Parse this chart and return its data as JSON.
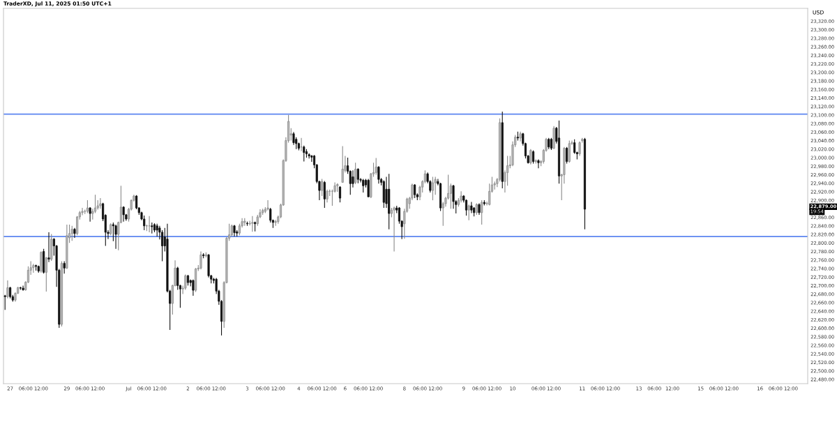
{
  "chart_data": {
    "type": "candlestick",
    "title": "TraderXD, Jul 11, 2025 01:50 UTC+1",
    "ylabel": "USD",
    "categories": [
      null,
      null,
      "27",
      null,
      null,
      null,
      null,
      null,
      "06:00",
      null,
      null,
      null,
      null,
      null,
      "12:00",
      null,
      null,
      null,
      null,
      null,
      null,
      null,
      null,
      null,
      "29",
      null,
      null,
      null,
      null,
      null,
      "06:00",
      null,
      null,
      null,
      null,
      null,
      "12:00",
      null,
      null,
      null,
      null,
      null,
      null,
      null,
      null,
      null,
      null,
      null,
      "Jul",
      null,
      null,
      null,
      null,
      null,
      "06:00",
      null,
      null,
      null,
      null,
      null,
      "12:00",
      null,
      null,
      null,
      null,
      null,
      null,
      null,
      null,
      null,
      null,
      "2",
      null,
      null,
      null,
      null,
      null,
      "06:00",
      null,
      null,
      null,
      null,
      null,
      "12:00",
      null,
      null,
      null,
      null,
      null,
      null,
      null,
      null,
      null,
      null,
      "3",
      null,
      null,
      null,
      null,
      null,
      "06:00",
      null,
      null,
      null,
      null,
      null,
      "12:00",
      null,
      null,
      null,
      null,
      null,
      null,
      null,
      "4",
      null,
      null,
      null,
      null,
      null,
      "06:00",
      null,
      null,
      null,
      null,
      null,
      "12:00",
      null,
      null,
      null,
      null,
      null,
      "6",
      null,
      null,
      null,
      null,
      null,
      "06:00",
      null,
      null,
      null,
      null,
      null,
      "12:00",
      null,
      null,
      null,
      null,
      null,
      null,
      null,
      null,
      null,
      null,
      "8",
      null,
      null,
      null,
      null,
      null,
      "06:00",
      null,
      null,
      null,
      null,
      null,
      "12:00",
      null,
      null,
      null,
      null,
      null,
      null,
      null,
      null,
      null,
      null,
      "9",
      null,
      null,
      null,
      null,
      null,
      "06:00",
      null,
      null,
      null,
      null,
      null,
      "12:00",
      null,
      null,
      null,
      null,
      null,
      null,
      "10",
      null,
      null,
      null,
      null,
      null,
      null,
      null,
      null,
      null,
      "06:00",
      null,
      null,
      null,
      null,
      null,
      "12:00",
      null,
      null,
      null,
      null,
      null,
      null,
      null,
      null,
      null,
      null,
      "11",
      null,
      null,
      null,
      null,
      null,
      "06:00",
      null,
      null,
      null,
      null,
      null,
      "12:00",
      null,
      null,
      null,
      null,
      null,
      null,
      null,
      null,
      null,
      "13",
      null,
      null,
      null,
      null,
      null,
      "06:00",
      null,
      null,
      null,
      null,
      null,
      null,
      "12:00",
      null,
      null,
      null,
      null,
      null,
      null,
      null,
      null,
      null,
      null,
      "15",
      null,
      null,
      null,
      null,
      null,
      "06:00",
      null,
      null,
      null,
      null,
      null,
      "12:00",
      null,
      null,
      null,
      null,
      null,
      null,
      null,
      null,
      null,
      null,
      "16",
      null,
      null,
      null,
      null,
      null,
      "06:00",
      null,
      null,
      null,
      null,
      null,
      "12:00",
      null,
      null,
      null,
      null,
      null,
      null
    ],
    "ohlc": [
      [
        22676,
        22678,
        22643,
        22674
      ],
      [
        22674,
        22712,
        22670,
        22695
      ],
      [
        22695,
        22697,
        22670,
        22674
      ],
      [
        22674,
        22678,
        22662,
        22666
      ],
      [
        22666,
        22684,
        22662,
        22682
      ],
      [
        22682,
        22697,
        22680,
        22695
      ],
      [
        22695,
        22697,
        22690,
        22694
      ],
      [
        22694,
        22700,
        22688,
        22690
      ],
      [
        22690,
        22710,
        22688,
        22708
      ],
      [
        22708,
        22745,
        22706,
        22736
      ],
      [
        22736,
        22757,
        22725,
        22742
      ],
      [
        22742,
        22751,
        22730,
        22747
      ],
      [
        22747,
        22749,
        22735,
        22745
      ],
      [
        22745,
        22747,
        22730,
        22734
      ],
      [
        22734,
        22780,
        22730,
        22778
      ],
      [
        22780,
        22786,
        22728,
        22731
      ],
      [
        22731,
        22767,
        22686,
        22765
      ],
      [
        22765,
        22825,
        22755,
        22762
      ],
      [
        22762,
        22821,
        22758,
        22809
      ],
      [
        22809,
        22811,
        22770,
        22793
      ],
      [
        22793,
        22795,
        22697,
        22736
      ],
      [
        22736,
        22739,
        22601,
        22609
      ],
      [
        22609,
        22757,
        22604,
        22752
      ],
      [
        22752,
        22757,
        22728,
        22741
      ],
      [
        22741,
        22843,
        22739,
        22817
      ],
      [
        22812,
        22843,
        22800,
        22822
      ],
      [
        22822,
        22840,
        22805,
        22832
      ],
      [
        22832,
        22835,
        22812,
        22822
      ],
      [
        22822,
        22863,
        22818,
        22861
      ],
      [
        22861,
        22875,
        22855,
        22871
      ],
      [
        22871,
        22882,
        22865,
        22874
      ],
      [
        22874,
        22878,
        22868,
        22874
      ],
      [
        22874,
        22900,
        22870,
        22882
      ],
      [
        22882,
        22884,
        22850,
        22869
      ],
      [
        22869,
        22880,
        22855,
        22874
      ],
      [
        22874,
        22913,
        22870,
        22882
      ],
      [
        22882,
        22900,
        22878,
        22887
      ],
      [
        22887,
        22905,
        22880,
        22892
      ],
      [
        22892,
        22894,
        22851,
        22856
      ],
      [
        22865,
        22867,
        22793,
        22825
      ],
      [
        22825,
        22830,
        22809,
        22822
      ],
      [
        22822,
        22846,
        22818,
        22843
      ],
      [
        22843,
        22848,
        22804,
        22840
      ],
      [
        22840,
        22843,
        22786,
        22820
      ],
      [
        22820,
        22850,
        22783,
        22848
      ],
      [
        22848,
        22934,
        22846,
        22884
      ],
      [
        22884,
        22886,
        22850,
        22866
      ],
      [
        22866,
        22868,
        22852,
        22856
      ],
      [
        22856,
        22882,
        22850,
        22879
      ],
      [
        22879,
        22902,
        22876,
        22900
      ],
      [
        22900,
        22913,
        22897,
        22910
      ],
      [
        22910,
        22912,
        22879,
        22882
      ],
      [
        22882,
        22884,
        22866,
        22871
      ],
      [
        22871,
        22873,
        22853,
        22856
      ],
      [
        22856,
        22864,
        22830,
        22840
      ],
      [
        22840,
        22843,
        22828,
        22840
      ],
      [
        22840,
        22863,
        22825,
        22840
      ],
      [
        22840,
        22848,
        22822,
        22838
      ],
      [
        22843,
        22846,
        22825,
        22830
      ],
      [
        22840,
        22845,
        22815,
        22830
      ],
      [
        22835,
        22840,
        22808,
        22825
      ],
      [
        22825,
        22830,
        22757,
        22793
      ],
      [
        22814,
        22835,
        22780,
        22793
      ],
      [
        22809,
        22845,
        22684,
        22687
      ],
      [
        22687,
        22690,
        22596,
        22658
      ],
      [
        22658,
        22702,
        22632,
        22700
      ],
      [
        22700,
        22759,
        22698,
        22741
      ],
      [
        22741,
        22744,
        22690,
        22700
      ],
      [
        22700,
        22702,
        22648,
        22692
      ],
      [
        22692,
        22700,
        22680,
        22694
      ],
      [
        22694,
        22726,
        22690,
        22723
      ],
      [
        22723,
        22725,
        22700,
        22707
      ],
      [
        22712,
        22714,
        22698,
        22707
      ],
      [
        22712,
        22714,
        22676,
        22689
      ],
      [
        22689,
        22741,
        22685,
        22739
      ],
      [
        22739,
        22748,
        22734,
        22741
      ],
      [
        22741,
        22780,
        22738,
        22772
      ],
      [
        22772,
        22776,
        22764,
        22770
      ],
      [
        22770,
        22778,
        22766,
        22772
      ],
      [
        22772,
        22774,
        22719,
        22723
      ],
      [
        22723,
        22725,
        22705,
        22715
      ],
      [
        22715,
        22718,
        22705,
        22712
      ],
      [
        22715,
        22718,
        22680,
        22687
      ],
      [
        22687,
        22690,
        22655,
        22663
      ],
      [
        22663,
        22666,
        22583,
        22616
      ],
      [
        22616,
        22710,
        22601,
        22707
      ],
      [
        22707,
        22814,
        22705,
        22811
      ],
      [
        22811,
        22845,
        22805,
        22819
      ],
      [
        22819,
        22843,
        22815,
        22840
      ],
      [
        22840,
        22842,
        22815,
        22824
      ],
      [
        22826,
        22830,
        22815,
        22823
      ],
      [
        22823,
        22845,
        22818,
        22840
      ],
      [
        22840,
        22858,
        22836,
        22850
      ],
      [
        22848,
        22858,
        22840,
        22851
      ],
      [
        22846,
        22850,
        22840,
        22845
      ],
      [
        22845,
        22852,
        22841,
        22846
      ],
      [
        22846,
        22863,
        22826,
        22848
      ],
      [
        22848,
        22850,
        22827,
        22845
      ],
      [
        22845,
        22866,
        22840,
        22861
      ],
      [
        22861,
        22879,
        22858,
        22871
      ],
      [
        22871,
        22880,
        22866,
        22876
      ],
      [
        22874,
        22884,
        22870,
        22879
      ],
      [
        22879,
        22900,
        22876,
        22882
      ],
      [
        22879,
        22882,
        22848,
        22853
      ],
      [
        22853,
        22855,
        22835,
        22848
      ],
      [
        22848,
        22854,
        22840,
        22850
      ],
      [
        22850,
        22864,
        22845,
        22861
      ],
      [
        22861,
        22892,
        22858,
        22889
      ],
      [
        22889,
        22996,
        22887,
        22993
      ],
      [
        22993,
        23048,
        22990,
        23040
      ],
      [
        23040,
        23100,
        23035,
        23085
      ],
      [
        23053,
        23069,
        23040,
        23056
      ],
      [
        23056,
        23060,
        23030,
        23035
      ],
      [
        23043,
        23048,
        23020,
        23033
      ],
      [
        23033,
        23035,
        23017,
        23022
      ],
      [
        23025,
        23046,
        23015,
        23025
      ],
      [
        23025,
        23028,
        22991,
        23012
      ],
      [
        23014,
        23020,
        23000,
        23009
      ],
      [
        23007,
        23010,
        22998,
        23004
      ],
      [
        23004,
        23006,
        22990,
        23001
      ],
      [
        23004,
        23006,
        22975,
        22983
      ],
      [
        22983,
        22985,
        22940,
        22944
      ],
      [
        22944,
        22946,
        22900,
        22923
      ],
      [
        22923,
        22950,
        22910,
        22944
      ],
      [
        22942,
        22945,
        22882,
        22903
      ],
      [
        22903,
        22925,
        22895,
        22921
      ],
      [
        22921,
        22925,
        22910,
        22921
      ],
      [
        22921,
        22925,
        22887,
        22921
      ],
      [
        22921,
        22942,
        22918,
        22934
      ],
      [
        22934,
        22940,
        22920,
        22937
      ],
      [
        22931,
        22933,
        22895,
        22905
      ],
      [
        22942,
        23027,
        22942,
        22973
      ],
      [
        22970,
        23004,
        22965,
        22981
      ],
      [
        22981,
        23000,
        22962,
        22968
      ],
      [
        22968,
        22970,
        22913,
        22939
      ],
      [
        22955,
        22970,
        22930,
        22939
      ],
      [
        22942,
        22988,
        22938,
        22973
      ],
      [
        22973,
        22975,
        22940,
        22949
      ],
      [
        22949,
        22952,
        22942,
        22947
      ],
      [
        22947,
        22950,
        22918,
        22934
      ],
      [
        22947,
        22950,
        22930,
        22936
      ],
      [
        22947,
        22950,
        22908,
        22908
      ],
      [
        22908,
        22964,
        22905,
        22962
      ],
      [
        22962,
        22988,
        22955,
        22965
      ],
      [
        22965,
        22999,
        22960,
        22978
      ],
      [
        22978,
        22980,
        22939,
        22949
      ],
      [
        22949,
        22952,
        22935,
        22942
      ],
      [
        22944,
        22947,
        22882,
        22895
      ],
      [
        22926,
        22955,
        22882,
        22892
      ],
      [
        22926,
        22962,
        22832,
        22869
      ],
      [
        22869,
        22882,
        22860,
        22877
      ],
      [
        22877,
        22885,
        22780,
        22882
      ],
      [
        22882,
        22887,
        22870,
        22877
      ],
      [
        22882,
        22884,
        22845,
        22851
      ],
      [
        22851,
        22853,
        22809,
        22838
      ],
      [
        22845,
        22880,
        22810,
        22874
      ],
      [
        22874,
        22906,
        22871,
        22903
      ],
      [
        22892,
        22908,
        22880,
        22905
      ],
      [
        22905,
        22939,
        22900,
        22936
      ],
      [
        22936,
        22938,
        22905,
        22913
      ],
      [
        22913,
        22916,
        22900,
        22908
      ],
      [
        22908,
        22934,
        22900,
        22931
      ],
      [
        22931,
        22947,
        22918,
        22944
      ],
      [
        22944,
        22970,
        22940,
        22962
      ],
      [
        22962,
        22965,
        22940,
        22944
      ],
      [
        22944,
        22947,
        22918,
        22923
      ],
      [
        22923,
        22955,
        22900,
        22941
      ],
      [
        22941,
        22955,
        22913,
        22949
      ],
      [
        22944,
        22950,
        22935,
        22939
      ],
      [
        22939,
        22941,
        22875,
        22882
      ],
      [
        22882,
        22896,
        22840,
        22892
      ],
      [
        22892,
        22908,
        22885,
        22905
      ],
      [
        22905,
        22960,
        22902,
        22916
      ],
      [
        22916,
        22939,
        22880,
        22934
      ],
      [
        22934,
        22936,
        22880,
        22897
      ],
      [
        22897,
        22900,
        22869,
        22890
      ],
      [
        22890,
        22905,
        22885,
        22900
      ],
      [
        22900,
        22921,
        22895,
        22910
      ],
      [
        22910,
        22912,
        22895,
        22900
      ],
      [
        22900,
        22902,
        22864,
        22877
      ],
      [
        22877,
        22890,
        22853,
        22887
      ],
      [
        22887,
        22896,
        22870,
        22877
      ],
      [
        22882,
        22884,
        22862,
        22871
      ],
      [
        22871,
        22893,
        22866,
        22890
      ],
      [
        22890,
        22893,
        22866,
        22871
      ],
      [
        22871,
        22900,
        22843,
        22895
      ],
      [
        22895,
        22900,
        22888,
        22892
      ],
      [
        22892,
        22897,
        22888,
        22893
      ],
      [
        22890,
        22939,
        22888,
        22921
      ],
      [
        22921,
        22955,
        22918,
        22936
      ],
      [
        22936,
        22944,
        22925,
        22939
      ],
      [
        22939,
        22952,
        22931,
        22949
      ],
      [
        22949,
        23092,
        22944,
        23082
      ],
      [
        23082,
        23108,
        22928,
        22944
      ],
      [
        22944,
        22970,
        22918,
        22965
      ],
      [
        22965,
        23004,
        22934,
        22981
      ],
      [
        22981,
        23004,
        22975,
        22983
      ],
      [
        22983,
        23038,
        22980,
        23030
      ],
      [
        23030,
        23053,
        23025,
        23048
      ],
      [
        23048,
        23061,
        23040,
        23046
      ],
      [
        23046,
        23061,
        23038,
        23056
      ],
      [
        23056,
        23058,
        23028,
        23033
      ],
      [
        23033,
        23035,
        22998,
        23004
      ],
      [
        23004,
        23006,
        22986,
        22988
      ],
      [
        22988,
        23020,
        22984,
        23017
      ],
      [
        23014,
        23017,
        22986,
        22991
      ],
      [
        22991,
        22996,
        22986,
        22993
      ],
      [
        22993,
        22996,
        22975,
        22988
      ],
      [
        22988,
        22994,
        22980,
        22991
      ],
      [
        22991,
        23020,
        22986,
        23017
      ],
      [
        23017,
        23046,
        23014,
        23043
      ],
      [
        23043,
        23046,
        23020,
        23025
      ],
      [
        23043,
        23046,
        23018,
        23022
      ],
      [
        23022,
        23074,
        23020,
        23069
      ],
      [
        23069,
        23072,
        23033,
        23038
      ],
      [
        23046,
        23087,
        22939,
        22957
      ],
      [
        22957,
        22962,
        22900,
        22960
      ],
      [
        22960,
        23025,
        22939,
        23022
      ],
      [
        23022,
        23025,
        22986,
        22991
      ],
      [
        22991,
        23040,
        22988,
        23033
      ],
      [
        23033,
        23040,
        23030,
        23035
      ],
      [
        23035,
        23043,
        23009,
        23012
      ],
      [
        23012,
        23014,
        22996,
        23009
      ],
      [
        23009,
        23038,
        23004,
        23035
      ],
      [
        23040,
        23046,
        23035,
        23043
      ],
      [
        23043,
        23046,
        22832,
        22879
      ],
      null,
      null,
      null,
      null,
      null,
      null,
      null,
      null,
      null,
      null,
      null,
      null,
      null,
      null,
      null,
      null,
      null,
      null,
      null,
      null,
      null,
      null,
      null,
      null,
      null,
      null,
      null,
      null,
      null,
      null,
      null,
      null,
      null,
      null,
      null,
      null,
      null,
      null,
      null,
      null,
      null,
      null,
      null,
      null,
      null,
      null,
      null,
      null,
      null,
      null,
      null,
      null,
      null,
      null,
      null,
      null,
      null,
      null,
      null,
      null,
      null,
      null,
      null,
      null,
      null,
      null,
      null,
      null,
      null,
      null,
      null,
      null,
      null,
      null,
      null,
      null,
      null,
      null,
      null,
      null,
      null,
      null,
      null,
      null,
      null,
      null
    ],
    "ylim": [
      22470,
      23350
    ],
    "yticks": [
      {
        "value": 22480,
        "label": "22,480.00"
      },
      {
        "value": 22500,
        "label": "22,500.00"
      },
      {
        "value": 22520,
        "label": "22,520.00"
      },
      {
        "value": 22540,
        "label": "22,540.00"
      },
      {
        "value": 22560,
        "label": "22,560.00"
      },
      {
        "value": 22580,
        "label": "22,580.00"
      },
      {
        "value": 22600,
        "label": "22,600.00"
      },
      {
        "value": 22620,
        "label": "22,620.00"
      },
      {
        "value": 22640,
        "label": "22,640.00"
      },
      {
        "value": 22660,
        "label": "22,660.00"
      },
      {
        "value": 22680,
        "label": "22,680.00"
      },
      {
        "value": 22700,
        "label": "22,700.00"
      },
      {
        "value": 22720,
        "label": "22,720.00"
      },
      {
        "value": 22740,
        "label": "22,740.00"
      },
      {
        "value": 22760,
        "label": "22,760.00"
      },
      {
        "value": 22780,
        "label": "22,780.00"
      },
      {
        "value": 22800,
        "label": "22,800.00"
      },
      {
        "value": 22820,
        "label": "22,820.00"
      },
      {
        "value": 22840,
        "label": "22,840.00"
      },
      {
        "value": 22860,
        "label": "22,860.00"
      },
      {
        "value": 22900,
        "label": "22,900.00"
      },
      {
        "value": 22920,
        "label": "22,920.00"
      },
      {
        "value": 22940,
        "label": "22,940.00"
      },
      {
        "value": 22960,
        "label": "22,960.00"
      },
      {
        "value": 22980,
        "label": "22,980.00"
      },
      {
        "value": 23000,
        "label": "23,000.00"
      },
      {
        "value": 23020,
        "label": "23,020.00"
      },
      {
        "value": 23040,
        "label": "23,040.00"
      },
      {
        "value": 23060,
        "label": "23,060.00"
      },
      {
        "value": 23080,
        "label": "23,080.00"
      },
      {
        "value": 23100,
        "label": "23,100.00"
      },
      {
        "value": 23120,
        "label": "23,120.00"
      },
      {
        "value": 23140,
        "label": "23,140.00"
      },
      {
        "value": 23160,
        "label": "23,160.00"
      },
      {
        "value": 23180,
        "label": "23,180.00"
      },
      {
        "value": 23200,
        "label": "23,200.00"
      },
      {
        "value": 23220,
        "label": "23,220.00"
      },
      {
        "value": 23240,
        "label": "23,240.00"
      },
      {
        "value": 23260,
        "label": "23,260.00"
      },
      {
        "value": 23280,
        "label": "23,280.00"
      },
      {
        "value": 23300,
        "label": "23,300.00"
      },
      {
        "value": 23320,
        "label": "23,320.00"
      }
    ],
    "ref_lines": [
      {
        "axis": "y",
        "value": 23102,
        "color": "#5b84f0"
      },
      {
        "axis": "y",
        "value": 22815,
        "color": "#5b84f0"
      }
    ],
    "annotations": [
      "22,879.00",
      "19:54"
    ],
    "grid": false,
    "legend": false
  }
}
